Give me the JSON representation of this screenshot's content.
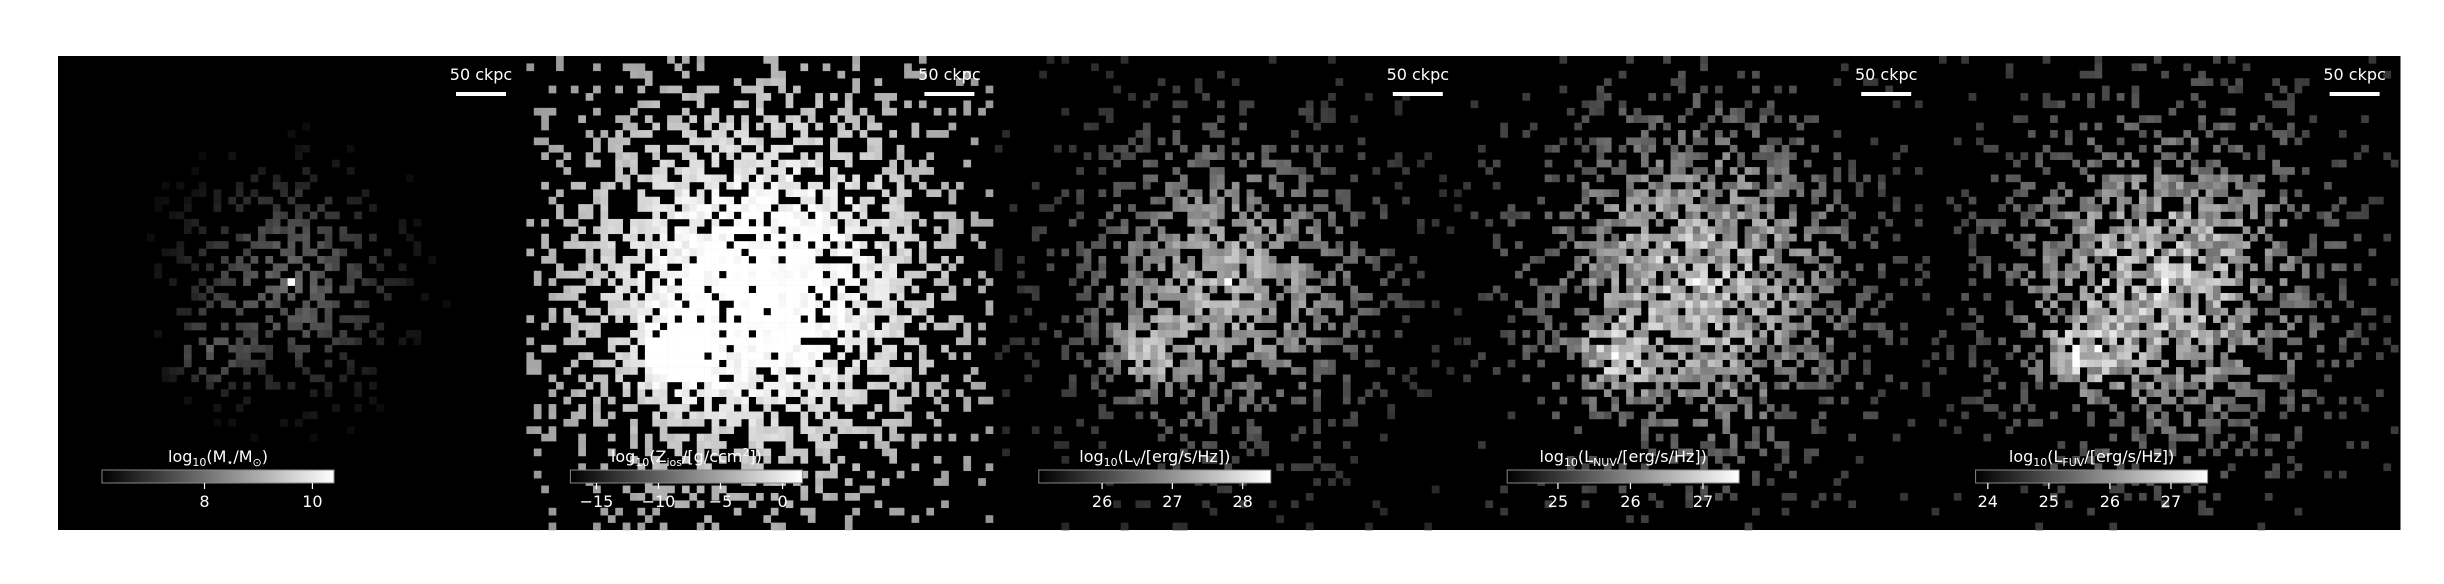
{
  "panels": [
    {
      "scalebar": "50 ckpc",
      "colorbar": {
        "label": [
          {
            "text": "log"
          },
          {
            "sub": "10"
          },
          {
            "text": "(M"
          },
          {
            "sub": "⋆"
          },
          {
            "text": "/M"
          },
          {
            "sub": "⊙"
          },
          {
            "text": ")"
          }
        ],
        "clim": [
          6.1,
          10.4
        ],
        "ticks": [
          8,
          10
        ]
      }
    },
    {
      "scalebar": "50 ckpc",
      "colorbar": {
        "label": [
          {
            "text": "log"
          },
          {
            "sub": "10"
          },
          {
            "text": "(Z"
          },
          {
            "sub": "ios"
          },
          {
            "text": "/[g/ccm"
          },
          {
            "sup": "2"
          },
          {
            "text": "])"
          }
        ],
        "clim": [
          -17.1,
          1.6
        ],
        "ticks": [
          {
            "value": -15,
            "label": "−15"
          },
          {
            "value": -10,
            "label": "−10"
          },
          {
            "value": -5,
            "label": "−5"
          },
          0
        ]
      }
    },
    {
      "scalebar": "50 ckpc",
      "colorbar": {
        "label": [
          {
            "text": "log"
          },
          {
            "sub": "10"
          },
          {
            "text": "(L"
          },
          {
            "sub": "V"
          },
          {
            "text": "/[erg/s/Hz])"
          }
        ],
        "clim": [
          25.1,
          28.4
        ],
        "ticks": [
          26,
          27,
          28
        ]
      }
    },
    {
      "scalebar": "50 ckpc",
      "colorbar": {
        "label": [
          {
            "text": "log"
          },
          {
            "sub": "10"
          },
          {
            "text": "(L"
          },
          {
            "sub": "NUV"
          },
          {
            "text": "/[erg/s/Hz])"
          }
        ],
        "clim": [
          24.3,
          27.5
        ],
        "ticks": [
          25,
          26,
          27
        ]
      }
    },
    {
      "scalebar": "50 ckpc",
      "colorbar": {
        "label": [
          {
            "text": "log"
          },
          {
            "sub": "10"
          },
          {
            "text": "(L"
          },
          {
            "sub": "FUV"
          },
          {
            "text": "/[erg/s/Hz])"
          }
        ],
        "clim": [
          23.8,
          27.6
        ],
        "ticks": [
          24,
          25,
          26,
          27
        ]
      }
    }
  ]
}
